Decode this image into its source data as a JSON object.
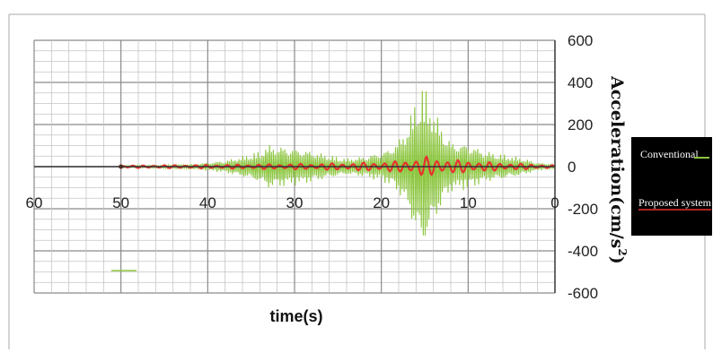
{
  "chart_data": {
    "type": "line",
    "xlabel": "time(s)",
    "ylabel": "Acceleration(cm/s",
    "ylabel_sup": "2",
    "ylabel_close": ")",
    "xlim": [
      0,
      60
    ],
    "ylim": [
      -600,
      600
    ],
    "x_reversed": true,
    "x_ticks": [
      60,
      50,
      40,
      30,
      20,
      10,
      0
    ],
    "x_tick_labels": [
      "60",
      "50",
      "40",
      "30",
      "20",
      "10",
      "0"
    ],
    "y_ticks": [
      600,
      400,
      200,
      0,
      -200,
      -400,
      -600
    ],
    "y_tick_labels": [
      "600",
      "400",
      "200",
      "0",
      "-200",
      "-400",
      "-600"
    ],
    "grid": true,
    "legend_position": "right",
    "series": [
      {
        "name": "Conventional",
        "color": "#8cc63f",
        "envelope": [
          [
            0,
            10
          ],
          [
            2,
            20
          ],
          [
            4,
            45
          ],
          [
            6,
            60
          ],
          [
            8,
            75
          ],
          [
            10,
            110
          ],
          [
            12,
            120
          ],
          [
            13,
            190
          ],
          [
            14,
            280
          ],
          [
            14.8,
            360
          ],
          [
            15.3,
            400
          ],
          [
            16,
            330
          ],
          [
            17,
            200
          ],
          [
            18,
            130
          ],
          [
            19,
            90
          ],
          [
            20,
            70
          ],
          [
            22,
            50
          ],
          [
            24,
            40
          ],
          [
            26,
            55
          ],
          [
            28,
            75
          ],
          [
            30,
            90
          ],
          [
            32,
            100
          ],
          [
            33,
            105
          ],
          [
            34,
            75
          ],
          [
            36,
            50
          ],
          [
            38,
            30
          ],
          [
            40,
            20
          ],
          [
            42,
            12
          ],
          [
            45,
            8
          ],
          [
            48,
            6
          ],
          [
            50,
            5
          ]
        ]
      },
      {
        "name": "Proposed system",
        "color": "#e8312f",
        "envelope": [
          [
            0,
            6
          ],
          [
            2,
            10
          ],
          [
            4,
            14
          ],
          [
            6,
            18
          ],
          [
            8,
            22
          ],
          [
            10,
            28
          ],
          [
            12,
            32
          ],
          [
            14,
            42
          ],
          [
            15,
            48
          ],
          [
            16,
            38
          ],
          [
            18,
            26
          ],
          [
            20,
            22
          ],
          [
            24,
            17
          ],
          [
            28,
            14
          ],
          [
            32,
            12
          ],
          [
            36,
            10
          ],
          [
            40,
            8
          ],
          [
            44,
            7
          ],
          [
            48,
            6
          ],
          [
            50,
            5
          ]
        ]
      }
    ]
  }
}
